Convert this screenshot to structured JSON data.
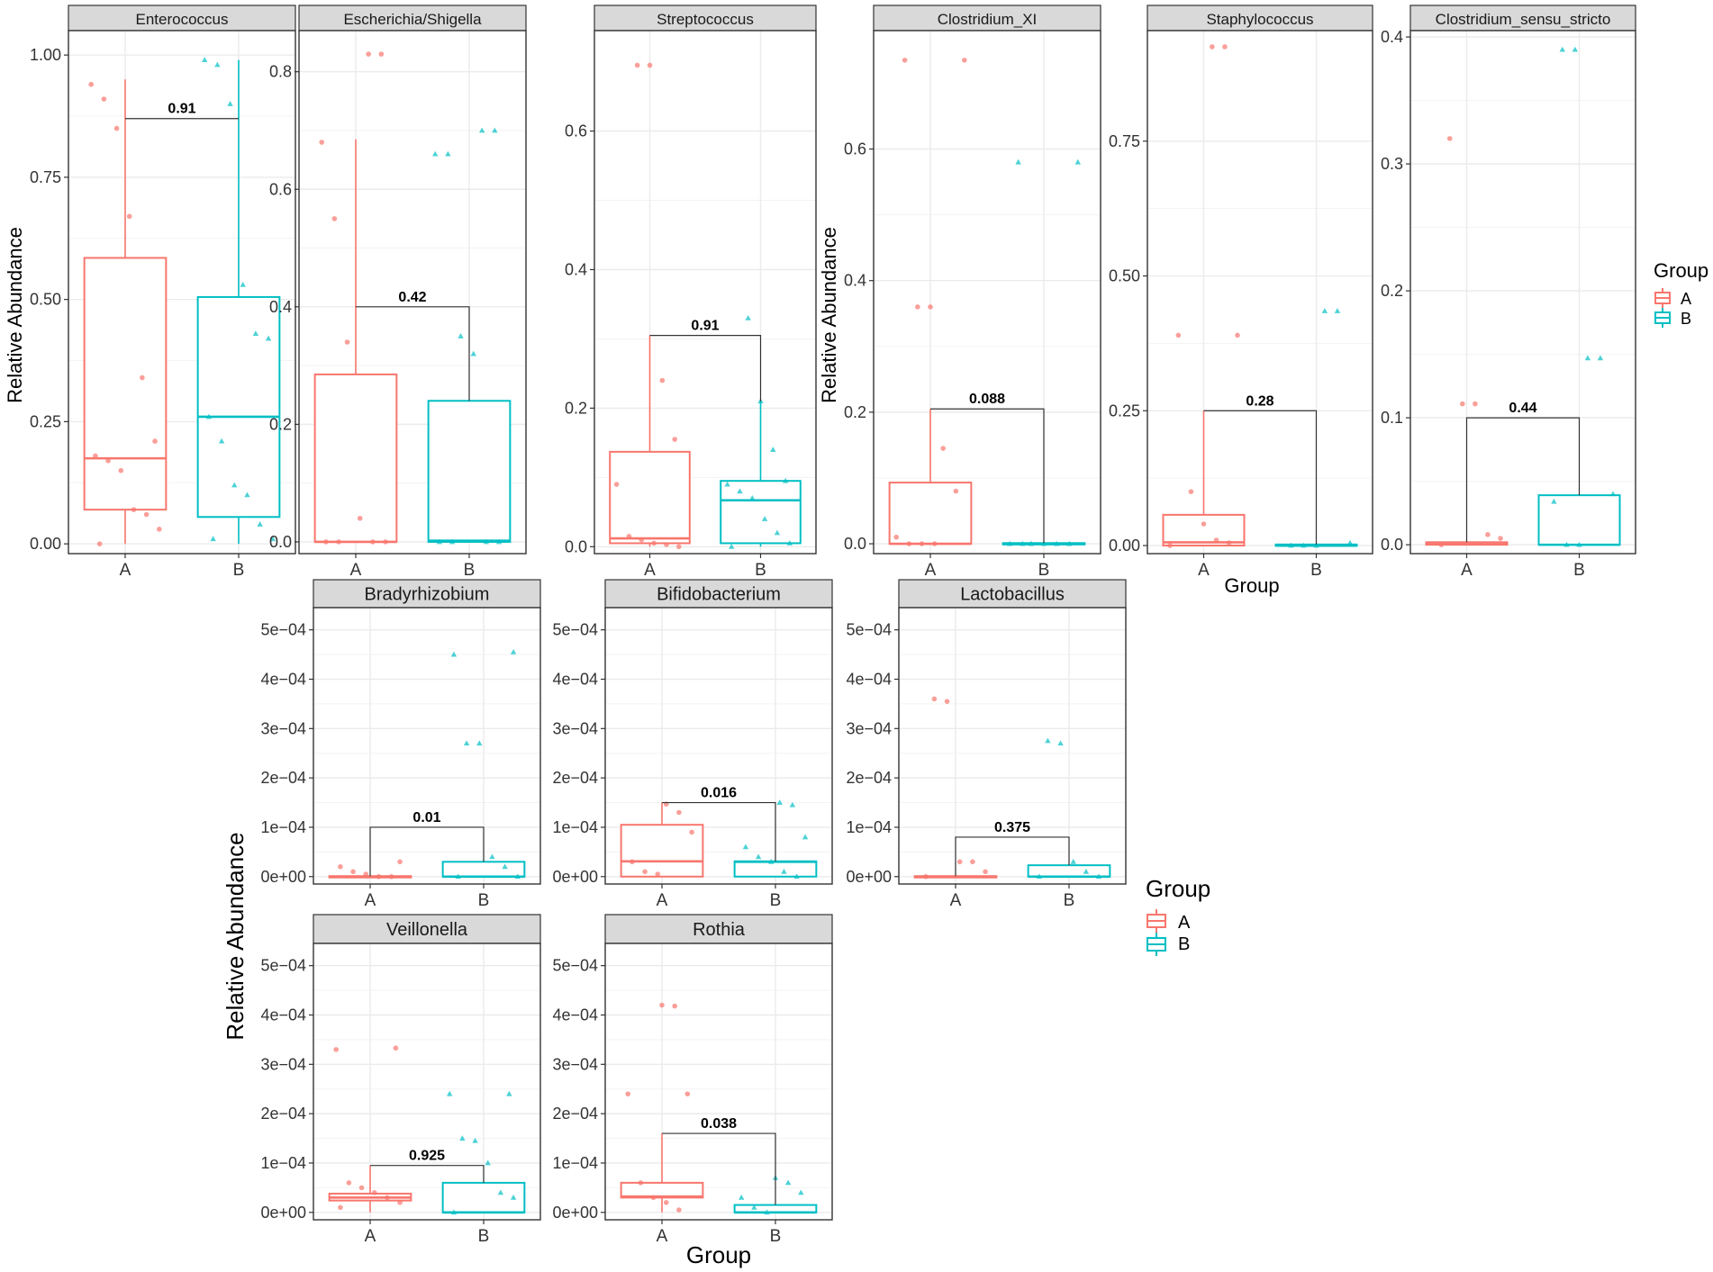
{
  "chart_data": {
    "type": "boxplot",
    "colors": {
      "A": "#f8766d",
      "B": "#00bfc4",
      "panel_border": "#333333",
      "strip_bg": "#d9d9d9",
      "grid": "#ebebeb",
      "bracket": "#333333"
    },
    "groups": [
      "A",
      "B"
    ],
    "figure1": {
      "ylabel": "Relative Abundance",
      "xlabel": "Group",
      "legend": {
        "title": "Group",
        "entries": [
          "A",
          "B"
        ],
        "position": "right"
      },
      "panels": [
        {
          "title": "Enterococcus",
          "ylim": [
            -0.02,
            1.05
          ],
          "yticks": [
            0.0,
            0.25,
            0.5,
            0.75,
            1.0
          ],
          "ytick_labels": [
            "0.00",
            "0.25",
            "0.50",
            "0.75",
            "1.00"
          ],
          "pvalue": "0.91",
          "bracket_y": 0.87,
          "boxes": [
            {
              "group": "A",
              "q1": 0.07,
              "median": 0.175,
              "q3": 0.585,
              "whisker_low": 0.0,
              "whisker_high": 0.95
            },
            {
              "group": "B",
              "q1": 0.055,
              "median": 0.26,
              "q3": 0.505,
              "whisker_low": 0.0,
              "whisker_high": 0.99
            }
          ],
          "points": [
            {
              "group": "A",
              "values": [
                0.94,
                0.91,
                0.85,
                0.67,
                0.34,
                0.21,
                0.18,
                0.17,
                0.15,
                0.07,
                0.06,
                0.03,
                0.0
              ]
            },
            {
              "group": "B",
              "values": [
                0.99,
                0.98,
                0.9,
                0.53,
                0.43,
                0.42,
                0.26,
                0.21,
                0.12,
                0.1,
                0.04,
                0.01,
                0.01
              ]
            }
          ]
        },
        {
          "title": "Escherichia/Shigella",
          "ylim": [
            -0.02,
            0.87
          ],
          "yticks": [
            0.0,
            0.2,
            0.4,
            0.6,
            0.8
          ],
          "ytick_labels": [
            "0.0",
            "0.2",
            "0.4",
            "0.6",
            "0.8"
          ],
          "pvalue": "0.42",
          "bracket_y": 0.4,
          "boxes": [
            {
              "group": "A",
              "q1": 0.0,
              "median": 0.0,
              "q3": 0.285,
              "whisker_low": 0.0,
              "whisker_high": 0.685
            },
            {
              "group": "B",
              "q1": 0.0,
              "median": 0.002,
              "q3": 0.24,
              "whisker_low": 0.0,
              "whisker_high": 0.24
            }
          ],
          "points": [
            {
              "group": "A",
              "values": [
                0.83,
                0.83,
                0.68,
                0.55,
                0.34,
                0.04,
                0.0,
                0.0,
                0.0,
                0.0
              ]
            },
            {
              "group": "B",
              "values": [
                0.7,
                0.7,
                0.66,
                0.66,
                0.35,
                0.32,
                0.0,
                0.0,
                0.0,
                0.0
              ]
            }
          ]
        },
        {
          "title": "Streptococcus",
          "ylim": [
            -0.01,
            0.745
          ],
          "yticks": [
            0.0,
            0.2,
            0.4,
            0.6
          ],
          "ytick_labels": [
            "0.0",
            "0.2",
            "0.4",
            "0.6"
          ],
          "pvalue": "0.91",
          "bracket_y": 0.305,
          "boxes": [
            {
              "group": "A",
              "q1": 0.005,
              "median": 0.012,
              "q3": 0.137,
              "whisker_low": 0.0,
              "whisker_high": 0.305
            },
            {
              "group": "B",
              "q1": 0.005,
              "median": 0.067,
              "q3": 0.095,
              "whisker_low": 0.0,
              "whisker_high": 0.21
            }
          ],
          "points": [
            {
              "group": "A",
              "values": [
                0.695,
                0.695,
                0.24,
                0.155,
                0.09,
                0.015,
                0.01,
                0.005,
                0.003,
                0.0
              ]
            },
            {
              "group": "B",
              "values": [
                0.33,
                0.21,
                0.14,
                0.095,
                0.09,
                0.08,
                0.07,
                0.04,
                0.02,
                0.005,
                0.0
              ]
            }
          ]
        },
        {
          "title": "Clostridium_XI",
          "ylim": [
            -0.015,
            0.78
          ],
          "yticks": [
            0.0,
            0.2,
            0.4,
            0.6
          ],
          "ytick_labels": [
            "0.0",
            "0.2",
            "0.4",
            "0.6"
          ],
          "pvalue": "0.088",
          "bracket_y": 0.205,
          "boxes": [
            {
              "group": "A",
              "q1": 0.0,
              "median": 0.0,
              "q3": 0.093,
              "whisker_low": 0.0,
              "whisker_high": 0.205
            },
            {
              "group": "B",
              "q1": 0.0,
              "median": 0.0,
              "q3": 0.001,
              "whisker_low": 0.0,
              "whisker_high": 0.001
            }
          ],
          "points": [
            {
              "group": "A",
              "values": [
                0.735,
                0.735,
                0.36,
                0.36,
                0.145,
                0.08,
                0.01,
                0.0,
                0.0,
                0.0
              ]
            },
            {
              "group": "B",
              "values": [
                0.58,
                0.58,
                0.0,
                0.0,
                0.0,
                0.0,
                0.0,
                0.0
              ]
            }
          ]
        },
        {
          "title": "Staphylococcus",
          "ylim": [
            -0.015,
            0.955
          ],
          "yticks": [
            0.0,
            0.25,
            0.5,
            0.75
          ],
          "ytick_labels": [
            "0.00",
            "0.25",
            "0.50",
            "0.75"
          ],
          "pvalue": "0.28",
          "bracket_y": 0.25,
          "boxes": [
            {
              "group": "A",
              "q1": 0.0,
              "median": 0.006,
              "q3": 0.057,
              "whisker_low": 0.0,
              "whisker_high": 0.25
            },
            {
              "group": "B",
              "q1": 0.0,
              "median": 0.0,
              "q3": 0.002,
              "whisker_low": 0.0,
              "whisker_high": 0.002
            }
          ],
          "points": [
            {
              "group": "A",
              "values": [
                0.925,
                0.925,
                0.39,
                0.39,
                0.1,
                0.04,
                0.01,
                0.005,
                0.0
              ]
            },
            {
              "group": "B",
              "values": [
                0.435,
                0.435,
                0.005,
                0.0,
                0.0,
                0.0
              ]
            }
          ]
        },
        {
          "title": "Clostridium_sensu_stricto",
          "ylim": [
            -0.007,
            0.405
          ],
          "yticks": [
            0.0,
            0.1,
            0.2,
            0.3,
            0.4
          ],
          "ytick_labels": [
            "0.0",
            "0.1",
            "0.2",
            "0.3",
            "0.4"
          ],
          "pvalue": "0.44",
          "bracket_y": 0.1,
          "boxes": [
            {
              "group": "A",
              "q1": 0.0,
              "median": 0.0005,
              "q3": 0.002,
              "whisker_low": 0.0,
              "whisker_high": 0.002
            },
            {
              "group": "B",
              "q1": 0.0,
              "median": 0.0,
              "q3": 0.039,
              "whisker_low": 0.0,
              "whisker_high": 0.039
            }
          ],
          "points": [
            {
              "group": "A",
              "values": [
                0.32,
                0.111,
                0.111,
                0.008,
                0.005,
                0.0
              ]
            },
            {
              "group": "B",
              "values": [
                0.39,
                0.39,
                0.147,
                0.147,
                0.04,
                0.034,
                0.0,
                0.0
              ]
            }
          ]
        }
      ]
    },
    "figure2": {
      "ylabel": "Relative Abundance",
      "xlabel": "Group",
      "legend": {
        "title": "Group",
        "entries": [
          "A",
          "B"
        ],
        "position": "right"
      },
      "ylim": [
        -1.5e-05,
        0.000545
      ],
      "yticks": [
        0.0,
        0.0001,
        0.0002,
        0.0003,
        0.0004,
        0.0005
      ],
      "ytick_labels": [
        "0e+00",
        "1e−04",
        "2e−04",
        "3e−04",
        "4e−04",
        "5e−04"
      ],
      "panels": [
        {
          "title": "Bradyrhizobium",
          "pvalue": "0.01",
          "bracket_y": 0.0001,
          "boxes": [
            {
              "group": "A",
              "q1": 0.0,
              "median": 0.0,
              "q3": 1e-06,
              "whisker_low": 0.0,
              "whisker_high": 1e-06
            },
            {
              "group": "B",
              "q1": 0.0,
              "median": 0.0,
              "q3": 3e-05,
              "whisker_low": 0.0,
              "whisker_high": 3e-05
            }
          ],
          "points": [
            {
              "group": "A",
              "values": [
                3e-05,
                2e-05,
                1e-05,
                5e-06,
                0.0,
                0.0
              ]
            },
            {
              "group": "B",
              "values": [
                0.000455,
                0.00045,
                0.00027,
                0.00027,
                4e-05,
                2e-05,
                0.0,
                0.0
              ]
            }
          ]
        },
        {
          "title": "Bifidobacterium",
          "pvalue": "0.016",
          "bracket_y": 0.00015,
          "boxes": [
            {
              "group": "A",
              "q1": 0.0,
              "median": 3.1e-05,
              "q3": 0.000105,
              "whisker_low": 0.0,
              "whisker_high": 0.00015
            },
            {
              "group": "B",
              "q1": 0.0,
              "median": 3e-05,
              "q3": 3.1e-05,
              "whisker_low": 0.0,
              "whisker_high": 3.1e-05
            }
          ],
          "points": [
            {
              "group": "A",
              "values": [
                0.000147,
                0.00013,
                9e-05,
                3e-05,
                1e-05,
                5e-06
              ]
            },
            {
              "group": "B",
              "values": [
                0.00015,
                0.000145,
                8e-05,
                6e-05,
                4e-05,
                3e-05,
                1e-05,
                0.0
              ]
            }
          ]
        },
        {
          "title": "Lactobacillus",
          "pvalue": "0.375",
          "bracket_y": 8e-05,
          "boxes": [
            {
              "group": "A",
              "q1": 0.0,
              "median": 0.0,
              "q3": 1e-06,
              "whisker_low": 0.0,
              "whisker_high": 1e-06
            },
            {
              "group": "B",
              "q1": 0.0,
              "median": 0.0,
              "q3": 2.3e-05,
              "whisker_low": 0.0,
              "whisker_high": 2.3e-05
            }
          ],
          "points": [
            {
              "group": "A",
              "values": [
                0.00036,
                0.000355,
                3e-05,
                3e-05,
                1e-05,
                0.0
              ]
            },
            {
              "group": "B",
              "values": [
                0.000275,
                0.00027,
                3e-05,
                1e-05,
                0.0,
                0.0
              ]
            }
          ]
        },
        {
          "title": "Veillonella",
          "pvalue": "0.925",
          "bracket_y": 9.5e-05,
          "boxes": [
            {
              "group": "A",
              "q1": 2.4e-05,
              "median": 3e-05,
              "q3": 3.8e-05,
              "whisker_low": 0.0,
              "whisker_high": 9.5e-05
            },
            {
              "group": "B",
              "q1": 0.0,
              "median": 0.0,
              "q3": 6e-05,
              "whisker_low": 0.0,
              "whisker_high": 6e-05
            }
          ],
          "points": [
            {
              "group": "A",
              "values": [
                0.000333,
                0.00033,
                6e-05,
                5e-05,
                4e-05,
                3e-05,
                2e-05,
                1e-05
              ]
            },
            {
              "group": "B",
              "values": [
                0.00024,
                0.00024,
                0.00015,
                0.000145,
                0.0001,
                4e-05,
                3e-05,
                0.0
              ]
            }
          ]
        },
        {
          "title": "Rothia",
          "pvalue": "0.038",
          "bracket_y": 0.00016,
          "boxes": [
            {
              "group": "A",
              "q1": 3e-05,
              "median": 3.2e-05,
              "q3": 6e-05,
              "whisker_low": 0.0,
              "whisker_high": 0.00016
            },
            {
              "group": "B",
              "q1": 0.0,
              "median": 0.0,
              "q3": 1.5e-05,
              "whisker_low": 0.0,
              "whisker_high": 1.5e-05
            }
          ],
          "points": [
            {
              "group": "A",
              "values": [
                0.00042,
                0.000418,
                0.00024,
                0.00024,
                6e-05,
                3e-05,
                2e-05,
                5e-06
              ]
            },
            {
              "group": "B",
              "values": [
                7e-05,
                6e-05,
                4e-05,
                3e-05,
                1e-05,
                0.0
              ]
            }
          ]
        }
      ]
    }
  }
}
